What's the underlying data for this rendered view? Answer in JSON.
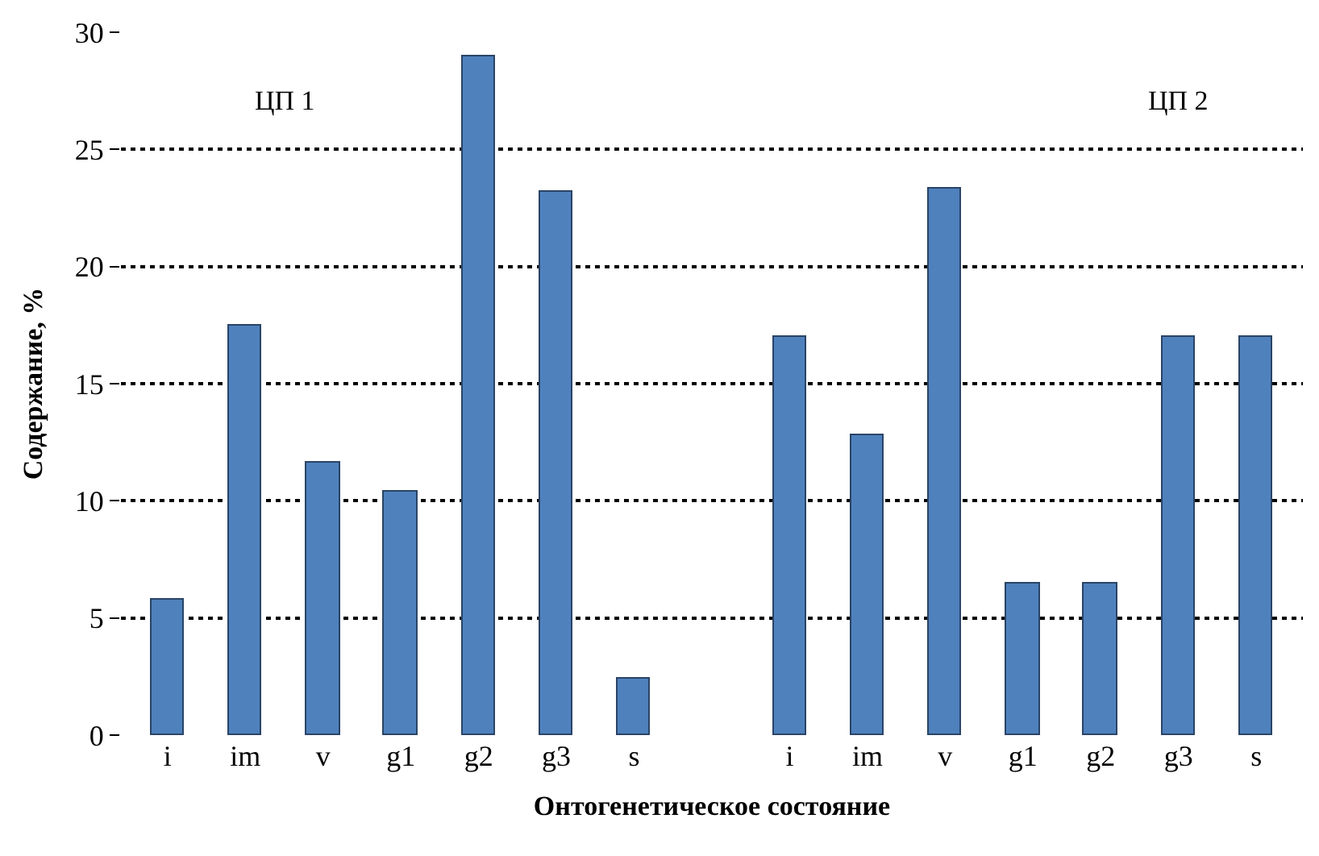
{
  "chart_data": {
    "type": "bar",
    "categories": [
      "i",
      "im",
      "v",
      "g1",
      "g2",
      "g3",
      "s",
      null,
      "i",
      "im",
      "v",
      "g1",
      "g2",
      "g3",
      "s"
    ],
    "values": [
      5.8,
      17.5,
      11.6,
      10.4,
      29.0,
      23.2,
      2.4,
      null,
      17.0,
      12.8,
      23.3,
      6.5,
      6.5,
      17.0,
      17.0
    ],
    "color": "#4f81bd",
    "xlabel": "Онтогенетическое состояние",
    "ylabel": "Содержание, %",
    "annotations": [
      "ЦП 1",
      "ЦП 2"
    ],
    "ylim": [
      0,
      30
    ],
    "yticks": [
      0,
      5,
      10,
      15,
      20,
      25,
      30
    ],
    "grid": "y",
    "legend": false
  }
}
